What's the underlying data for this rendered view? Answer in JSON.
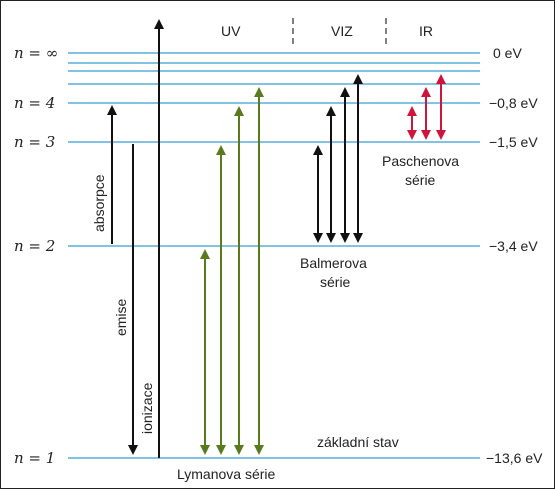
{
  "levels": {
    "n1": {
      "label": "n = 1",
      "energy": "−13,6 eV"
    },
    "n2": {
      "label": "n = 2",
      "energy": "−3,4 eV"
    },
    "n3": {
      "label": "n = 3",
      "energy": "−1,5 eV"
    },
    "n4": {
      "label": "n = 4",
      "energy": "−0,8 eV"
    },
    "ninf": {
      "label": "n = ∞",
      "energy": "0 eV"
    }
  },
  "regions": {
    "uv": "UV",
    "viz": "VIZ",
    "ir": "IR"
  },
  "labels": {
    "absorpce": "absorpce",
    "emise": "emise",
    "ionizace": "ionizace",
    "zakladni_stav": "základní stav",
    "lyman": "Lymanova série",
    "balmer_1": "Balmerova",
    "balmer_2": "série",
    "paschen_1": "Paschenova",
    "paschen_2": "série"
  },
  "colors": {
    "level_line": "#5aaedc",
    "black_arrow": "#111111",
    "lyman_arrow": "#5a7a1e",
    "paschen_arrow": "#d0143c"
  }
}
